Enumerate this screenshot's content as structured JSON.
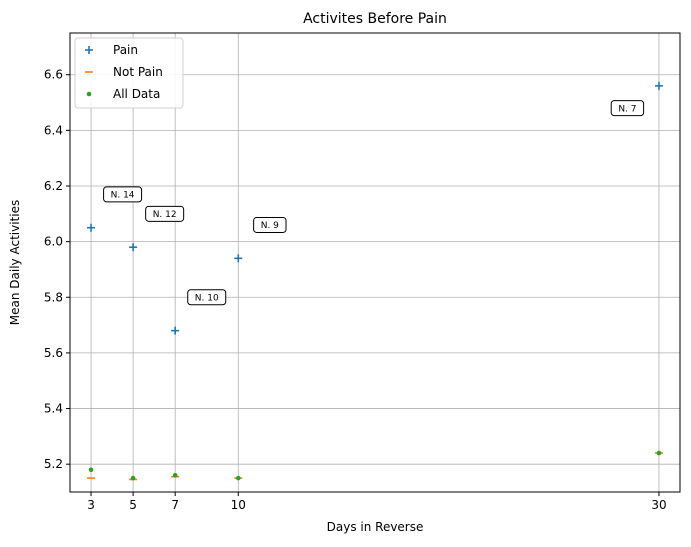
{
  "chart_data": {
    "type": "scatter",
    "title": "Activites Before Pain",
    "xlabel": "Days in Reverse",
    "ylabel": "Mean Daily Activities",
    "xlim": [
      2,
      31
    ],
    "ylim": [
      5.1,
      6.75
    ],
    "xticks": [
      3,
      5,
      7,
      10,
      30
    ],
    "yticks": [
      5.2,
      5.4,
      5.6,
      5.8,
      6.0,
      6.2,
      6.4,
      6.6
    ],
    "ytick_labels": [
      "5.2",
      "5.4",
      "5.6",
      "5.8",
      "6.0",
      "6.2",
      "6.4",
      "6.6"
    ],
    "grid": true,
    "legend_position": "upper-left",
    "series": [
      {
        "name": "Pain",
        "marker": "plus",
        "color": "#1f77b4",
        "x": [
          3,
          5,
          7,
          10,
          30
        ],
        "y": [
          6.05,
          5.98,
          5.68,
          5.94,
          6.56
        ]
      },
      {
        "name": "Not Pain",
        "marker": "hline",
        "color": "#ff7f0e",
        "x": [
          3,
          5,
          7,
          10,
          30
        ],
        "y": [
          5.15,
          5.145,
          5.155,
          5.15,
          5.24
        ]
      },
      {
        "name": "All Data",
        "marker": "dot",
        "color": "#2ca02c",
        "x": [
          3,
          5,
          7,
          10,
          30
        ],
        "y": [
          5.18,
          5.15,
          5.16,
          5.15,
          5.24
        ]
      }
    ],
    "annotations": [
      {
        "text": "N. 14",
        "x": 4.5,
        "y": 6.17
      },
      {
        "text": "N. 12",
        "x": 6.5,
        "y": 6.1
      },
      {
        "text": "N. 10",
        "x": 8.5,
        "y": 5.8
      },
      {
        "text": "N. 9",
        "x": 11.5,
        "y": 6.06
      },
      {
        "text": "N. 7",
        "x": 28.5,
        "y": 6.48
      }
    ]
  }
}
